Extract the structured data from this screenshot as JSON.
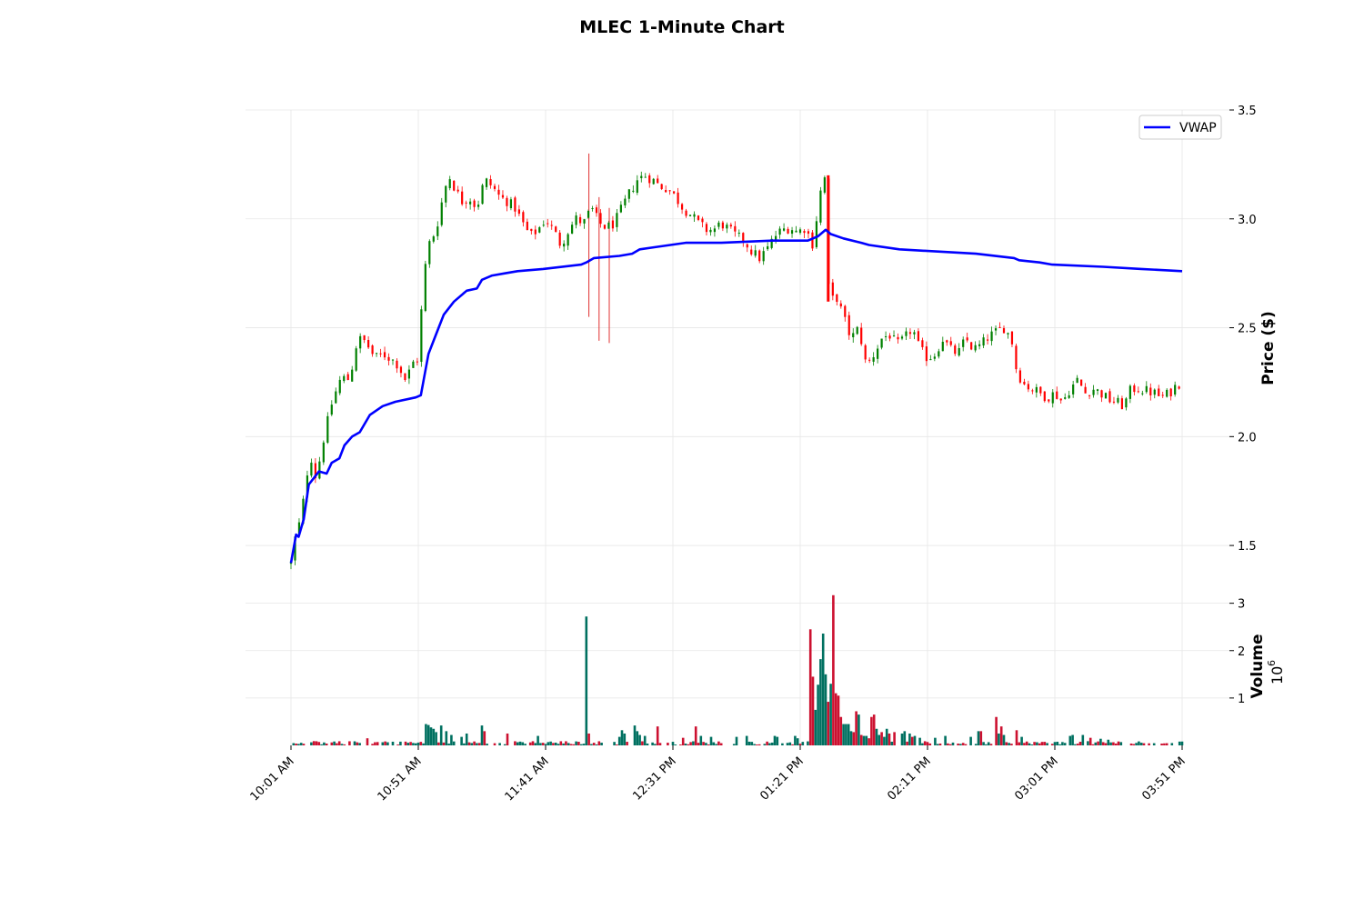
{
  "chart_data": {
    "type": "candlestick",
    "title": "MLEC 1-Minute Chart",
    "ylabel": "Price ($)",
    "volume_label": "Volume",
    "volume_multiplier": "10^6",
    "volume_multiplier_base": "10",
    "volume_multiplier_exp": "6",
    "x_ticks": [
      "10:01 AM",
      "10:51 AM",
      "11:41 AM",
      "12:31 PM",
      "01:21 PM",
      "02:11 PM",
      "03:01 PM",
      "03:51 PM"
    ],
    "x_range": [
      "10:01",
      "15:51"
    ],
    "price_ylim": [
      1.3,
      3.5
    ],
    "price_ticks": [
      "1.5",
      "2.0",
      "2.5",
      "3.0",
      "3.5"
    ],
    "volume_ylim": [
      0,
      3.3
    ],
    "volume_ticks": [
      "1",
      "2",
      "3"
    ],
    "colors": {
      "up": "#008000",
      "down": "#ff0000",
      "vwap": "#0000ff",
      "volume_up": "#007060",
      "volume_down": "#cc1130"
    },
    "legend": {
      "entries": [
        "VWAP"
      ],
      "placement": "top-right"
    },
    "grid": true,
    "price_path": [
      [
        "10:01",
        1.42
      ],
      [
        "10:03",
        1.56
      ],
      [
        "10:05",
        1.62
      ],
      [
        "10:07",
        1.82
      ],
      [
        "10:09",
        1.9
      ],
      [
        "10:11",
        1.8
      ],
      [
        "10:13",
        1.95
      ],
      [
        "10:15",
        2.05
      ],
      [
        "10:17",
        2.15
      ],
      [
        "10:19",
        2.22
      ],
      [
        "10:21",
        2.28
      ],
      [
        "10:23",
        2.25
      ],
      [
        "10:25",
        2.32
      ],
      [
        "10:27",
        2.44
      ],
      [
        "10:29",
        2.45
      ],
      [
        "10:31",
        2.42
      ],
      [
        "10:34",
        2.36
      ],
      [
        "10:37",
        2.38
      ],
      [
        "10:40",
        2.36
      ],
      [
        "10:43",
        2.33
      ],
      [
        "10:46",
        2.26
      ],
      [
        "10:49",
        2.34
      ],
      [
        "10:51",
        2.36
      ],
      [
        "10:53",
        2.72
      ],
      [
        "10:55",
        2.88
      ],
      [
        "10:58",
        2.95
      ],
      [
        "11:01",
        3.12
      ],
      [
        "11:03",
        3.2
      ],
      [
        "11:05",
        3.15
      ],
      [
        "11:08",
        3.08
      ],
      [
        "11:11",
        3.1
      ],
      [
        "11:14",
        3.05
      ],
      [
        "11:17",
        3.18
      ],
      [
        "11:20",
        3.15
      ],
      [
        "11:23",
        3.1
      ],
      [
        "11:26",
        3.08
      ],
      [
        "11:29",
        3.05
      ],
      [
        "11:32",
        2.98
      ],
      [
        "11:35",
        2.92
      ],
      [
        "11:38",
        2.95
      ],
      [
        "11:41",
        3.0
      ],
      [
        "11:44",
        2.95
      ],
      [
        "11:47",
        2.88
      ],
      [
        "11:50",
        2.95
      ],
      [
        "11:53",
        3.0
      ],
      [
        "11:56",
        2.98
      ],
      [
        "11:59",
        3.05
      ],
      [
        "12:02",
        2.98
      ],
      [
        "12:05",
        2.96
      ],
      [
        "12:08",
        2.98
      ],
      [
        "12:11",
        3.05
      ],
      [
        "12:14",
        3.12
      ],
      [
        "12:17",
        3.18
      ],
      [
        "12:20",
        3.2
      ],
      [
        "12:23",
        3.18
      ],
      [
        "12:26",
        3.15
      ],
      [
        "12:29",
        3.14
      ],
      [
        "12:32",
        3.1
      ],
      [
        "12:35",
        3.05
      ],
      [
        "12:38",
        3.02
      ],
      [
        "12:41",
        2.98
      ],
      [
        "12:44",
        2.95
      ],
      [
        "12:47",
        2.95
      ],
      [
        "12:50",
        2.98
      ],
      [
        "12:53",
        2.95
      ],
      [
        "12:56",
        2.92
      ],
      [
        "12:59",
        2.9
      ],
      [
        "13:02",
        2.85
      ],
      [
        "13:05",
        2.82
      ],
      [
        "13:08",
        2.86
      ],
      [
        "13:11",
        2.92
      ],
      [
        "13:14",
        2.95
      ],
      [
        "13:17",
        2.96
      ],
      [
        "13:20",
        2.94
      ],
      [
        "13:23",
        2.96
      ],
      [
        "13:26",
        2.88
      ],
      [
        "13:28",
        3.05
      ],
      [
        "13:30",
        3.2
      ],
      [
        "13:31",
        3.18
      ],
      [
        "13:32",
        2.7
      ],
      [
        "13:33",
        2.62
      ],
      [
        "13:35",
        2.65
      ],
      [
        "13:38",
        2.55
      ],
      [
        "13:41",
        2.45
      ],
      [
        "13:44",
        2.5
      ],
      [
        "13:47",
        2.32
      ],
      [
        "13:50",
        2.38
      ],
      [
        "13:53",
        2.45
      ],
      [
        "13:56",
        2.47
      ],
      [
        "13:59",
        2.42
      ],
      [
        "14:02",
        2.45
      ],
      [
        "14:05",
        2.5
      ],
      [
        "14:08",
        2.4
      ],
      [
        "14:11",
        2.36
      ],
      [
        "14:14",
        2.38
      ],
      [
        "14:17",
        2.45
      ],
      [
        "14:20",
        2.4
      ],
      [
        "14:23",
        2.38
      ],
      [
        "14:26",
        2.45
      ],
      [
        "14:29",
        2.4
      ],
      [
        "14:32",
        2.42
      ],
      [
        "14:35",
        2.46
      ],
      [
        "14:38",
        2.48
      ],
      [
        "14:41",
        2.5
      ],
      [
        "14:44",
        2.45
      ],
      [
        "14:46",
        2.3
      ],
      [
        "14:49",
        2.24
      ],
      [
        "14:52",
        2.22
      ],
      [
        "14:55",
        2.2
      ],
      [
        "14:58",
        2.18
      ],
      [
        "15:01",
        2.2
      ],
      [
        "15:04",
        2.16
      ],
      [
        "15:07",
        2.22
      ],
      [
        "15:10",
        2.26
      ],
      [
        "15:13",
        2.2
      ],
      [
        "15:16",
        2.22
      ],
      [
        "15:19",
        2.2
      ],
      [
        "15:22",
        2.17
      ],
      [
        "15:25",
        2.16
      ],
      [
        "15:28",
        2.14
      ],
      [
        "15:31",
        2.22
      ],
      [
        "15:34",
        2.22
      ],
      [
        "15:37",
        2.21
      ],
      [
        "15:40",
        2.2
      ],
      [
        "15:43",
        2.18
      ],
      [
        "15:46",
        2.2
      ],
      [
        "15:49",
        2.24
      ],
      [
        "15:51",
        2.25
      ]
    ],
    "price_spikes": [
      {
        "time": "11:58",
        "low": 2.55,
        "high": 3.3
      },
      {
        "time": "12:02",
        "low": 2.44,
        "high": 3.1
      },
      {
        "time": "12:06",
        "low": 2.43,
        "high": 3.05
      }
    ],
    "vwap": [
      [
        "10:01",
        1.42
      ],
      [
        "10:03",
        1.55
      ],
      [
        "10:04",
        1.54
      ],
      [
        "10:06",
        1.62
      ],
      [
        "10:08",
        1.78
      ],
      [
        "10:10",
        1.81
      ],
      [
        "10:12",
        1.84
      ],
      [
        "10:15",
        1.83
      ],
      [
        "10:17",
        1.88
      ],
      [
        "10:20",
        1.9
      ],
      [
        "10:22",
        1.96
      ],
      [
        "10:25",
        2.0
      ],
      [
        "10:28",
        2.02
      ],
      [
        "10:32",
        2.1
      ],
      [
        "10:37",
        2.14
      ],
      [
        "10:42",
        2.16
      ],
      [
        "10:50",
        2.18
      ],
      [
        "10:52",
        2.19
      ],
      [
        "10:55",
        2.38
      ],
      [
        "10:57",
        2.44
      ],
      [
        "10:59",
        2.5
      ],
      [
        "11:01",
        2.56
      ],
      [
        "11:05",
        2.62
      ],
      [
        "11:10",
        2.67
      ],
      [
        "11:14",
        2.68
      ],
      [
        "11:16",
        2.72
      ],
      [
        "11:20",
        2.74
      ],
      [
        "11:25",
        2.75
      ],
      [
        "11:30",
        2.76
      ],
      [
        "11:40",
        2.77
      ],
      [
        "11:55",
        2.79
      ],
      [
        "11:57",
        2.8
      ],
      [
        "12:00",
        2.82
      ],
      [
        "12:10",
        2.83
      ],
      [
        "12:15",
        2.84
      ],
      [
        "12:18",
        2.86
      ],
      [
        "12:24",
        2.87
      ],
      [
        "12:36",
        2.89
      ],
      [
        "12:50",
        2.89
      ],
      [
        "13:10",
        2.9
      ],
      [
        "13:24",
        2.9
      ],
      [
        "13:28",
        2.92
      ],
      [
        "13:31",
        2.95
      ],
      [
        "13:33",
        2.93
      ],
      [
        "13:38",
        2.91
      ],
      [
        "13:45",
        2.89
      ],
      [
        "13:48",
        2.88
      ],
      [
        "14:00",
        2.86
      ],
      [
        "14:15",
        2.85
      ],
      [
        "14:30",
        2.84
      ],
      [
        "14:45",
        2.82
      ],
      [
        "14:47",
        2.81
      ],
      [
        "14:55",
        2.8
      ],
      [
        "15:00",
        2.79
      ],
      [
        "15:20",
        2.78
      ],
      [
        "15:35",
        2.77
      ],
      [
        "15:51",
        2.76
      ]
    ],
    "volume_baseline_millions": 0.06,
    "volume_spikes": [
      {
        "time": "10:31",
        "value": 0.15,
        "direction": "down"
      },
      {
        "time": "10:54",
        "value": 0.45,
        "direction": "up"
      },
      {
        "time": "10:55",
        "value": 0.43,
        "direction": "up"
      },
      {
        "time": "10:56",
        "value": 0.38,
        "direction": "up"
      },
      {
        "time": "10:57",
        "value": 0.35,
        "direction": "up"
      },
      {
        "time": "10:58",
        "value": 0.28,
        "direction": "up"
      },
      {
        "time": "11:00",
        "value": 0.42,
        "direction": "up"
      },
      {
        "time": "11:02",
        "value": 0.3,
        "direction": "up"
      },
      {
        "time": "11:04",
        "value": 0.22,
        "direction": "up"
      },
      {
        "time": "11:08",
        "value": 0.18,
        "direction": "up"
      },
      {
        "time": "11:10",
        "value": 0.25,
        "direction": "up"
      },
      {
        "time": "11:16",
        "value": 0.42,
        "direction": "up"
      },
      {
        "time": "11:17",
        "value": 0.3,
        "direction": "down"
      },
      {
        "time": "11:26",
        "value": 0.25,
        "direction": "down"
      },
      {
        "time": "11:38",
        "value": 0.2,
        "direction": "up"
      },
      {
        "time": "11:57",
        "value": 2.72,
        "direction": "up"
      },
      {
        "time": "11:58",
        "value": 0.25,
        "direction": "down"
      },
      {
        "time": "12:10",
        "value": 0.18,
        "direction": "up"
      },
      {
        "time": "12:11",
        "value": 0.32,
        "direction": "up"
      },
      {
        "time": "12:12",
        "value": 0.25,
        "direction": "up"
      },
      {
        "time": "12:16",
        "value": 0.42,
        "direction": "up"
      },
      {
        "time": "12:17",
        "value": 0.3,
        "direction": "up"
      },
      {
        "time": "12:18",
        "value": 0.22,
        "direction": "up"
      },
      {
        "time": "12:20",
        "value": 0.2,
        "direction": "up"
      },
      {
        "time": "12:25",
        "value": 0.4,
        "direction": "down"
      },
      {
        "time": "12:35",
        "value": 0.16,
        "direction": "down"
      },
      {
        "time": "12:40",
        "value": 0.4,
        "direction": "down"
      },
      {
        "time": "12:42",
        "value": 0.2,
        "direction": "up"
      },
      {
        "time": "12:46",
        "value": 0.18,
        "direction": "up"
      },
      {
        "time": "12:56",
        "value": 0.18,
        "direction": "up"
      },
      {
        "time": "13:00",
        "value": 0.2,
        "direction": "up"
      },
      {
        "time": "13:11",
        "value": 0.2,
        "direction": "up"
      },
      {
        "time": "13:12",
        "value": 0.18,
        "direction": "up"
      },
      {
        "time": "13:19",
        "value": 0.2,
        "direction": "up"
      },
      {
        "time": "13:20",
        "value": 0.15,
        "direction": "up"
      },
      {
        "time": "13:25",
        "value": 2.45,
        "direction": "down"
      },
      {
        "time": "13:26",
        "value": 1.45,
        "direction": "down"
      },
      {
        "time": "13:27",
        "value": 0.75,
        "direction": "up"
      },
      {
        "time": "13:28",
        "value": 1.28,
        "direction": "up"
      },
      {
        "time": "13:29",
        "value": 1.82,
        "direction": "up"
      },
      {
        "time": "13:30",
        "value": 2.36,
        "direction": "up"
      },
      {
        "time": "13:31",
        "value": 1.5,
        "direction": "up"
      },
      {
        "time": "13:32",
        "value": 0.92,
        "direction": "down"
      },
      {
        "time": "13:33",
        "value": 1.3,
        "direction": "up"
      },
      {
        "time": "13:34",
        "value": 3.17,
        "direction": "down"
      },
      {
        "time": "13:35",
        "value": 1.1,
        "direction": "down"
      },
      {
        "time": "13:36",
        "value": 1.05,
        "direction": "down"
      },
      {
        "time": "13:37",
        "value": 0.6,
        "direction": "down"
      },
      {
        "time": "13:38",
        "value": 0.45,
        "direction": "up"
      },
      {
        "time": "13:39",
        "value": 0.45,
        "direction": "up"
      },
      {
        "time": "13:40",
        "value": 0.45,
        "direction": "up"
      },
      {
        "time": "13:41",
        "value": 0.3,
        "direction": "up"
      },
      {
        "time": "13:42",
        "value": 0.28,
        "direction": "down"
      },
      {
        "time": "13:43",
        "value": 0.72,
        "direction": "down"
      },
      {
        "time": "13:44",
        "value": 0.65,
        "direction": "up"
      },
      {
        "time": "13:45",
        "value": 0.22,
        "direction": "down"
      },
      {
        "time": "13:46",
        "value": 0.2,
        "direction": "up"
      },
      {
        "time": "13:47",
        "value": 0.2,
        "direction": "up"
      },
      {
        "time": "13:48",
        "value": 0.15,
        "direction": "down"
      },
      {
        "time": "13:49",
        "value": 0.6,
        "direction": "down"
      },
      {
        "time": "13:50",
        "value": 0.65,
        "direction": "down"
      },
      {
        "time": "13:51",
        "value": 0.35,
        "direction": "up"
      },
      {
        "time": "13:52",
        "value": 0.22,
        "direction": "up"
      },
      {
        "time": "13:53",
        "value": 0.28,
        "direction": "down"
      },
      {
        "time": "13:54",
        "value": 0.18,
        "direction": "up"
      },
      {
        "time": "13:55",
        "value": 0.35,
        "direction": "up"
      },
      {
        "time": "13:56",
        "value": 0.25,
        "direction": "down"
      },
      {
        "time": "13:58",
        "value": 0.28,
        "direction": "down"
      },
      {
        "time": "14:01",
        "value": 0.25,
        "direction": "up"
      },
      {
        "time": "14:02",
        "value": 0.3,
        "direction": "up"
      },
      {
        "time": "14:04",
        "value": 0.25,
        "direction": "up"
      },
      {
        "time": "14:05",
        "value": 0.18,
        "direction": "down"
      },
      {
        "time": "14:06",
        "value": 0.2,
        "direction": "up"
      },
      {
        "time": "14:08",
        "value": 0.16,
        "direction": "up"
      },
      {
        "time": "14:14",
        "value": 0.16,
        "direction": "up"
      },
      {
        "time": "14:18",
        "value": 0.2,
        "direction": "up"
      },
      {
        "time": "14:28",
        "value": 0.18,
        "direction": "up"
      },
      {
        "time": "14:31",
        "value": 0.3,
        "direction": "up"
      },
      {
        "time": "14:32",
        "value": 0.3,
        "direction": "down"
      },
      {
        "time": "14:38",
        "value": 0.6,
        "direction": "down"
      },
      {
        "time": "14:39",
        "value": 0.25,
        "direction": "up"
      },
      {
        "time": "14:40",
        "value": 0.4,
        "direction": "down"
      },
      {
        "time": "14:41",
        "value": 0.22,
        "direction": "up"
      },
      {
        "time": "14:46",
        "value": 0.32,
        "direction": "down"
      },
      {
        "time": "14:48",
        "value": 0.18,
        "direction": "up"
      },
      {
        "time": "15:07",
        "value": 0.2,
        "direction": "up"
      },
      {
        "time": "15:08",
        "value": 0.22,
        "direction": "up"
      },
      {
        "time": "15:12",
        "value": 0.22,
        "direction": "up"
      },
      {
        "time": "15:15",
        "value": 0.16,
        "direction": "down"
      },
      {
        "time": "15:19",
        "value": 0.14,
        "direction": "up"
      },
      {
        "time": "15:22",
        "value": 0.12,
        "direction": "up"
      }
    ]
  }
}
